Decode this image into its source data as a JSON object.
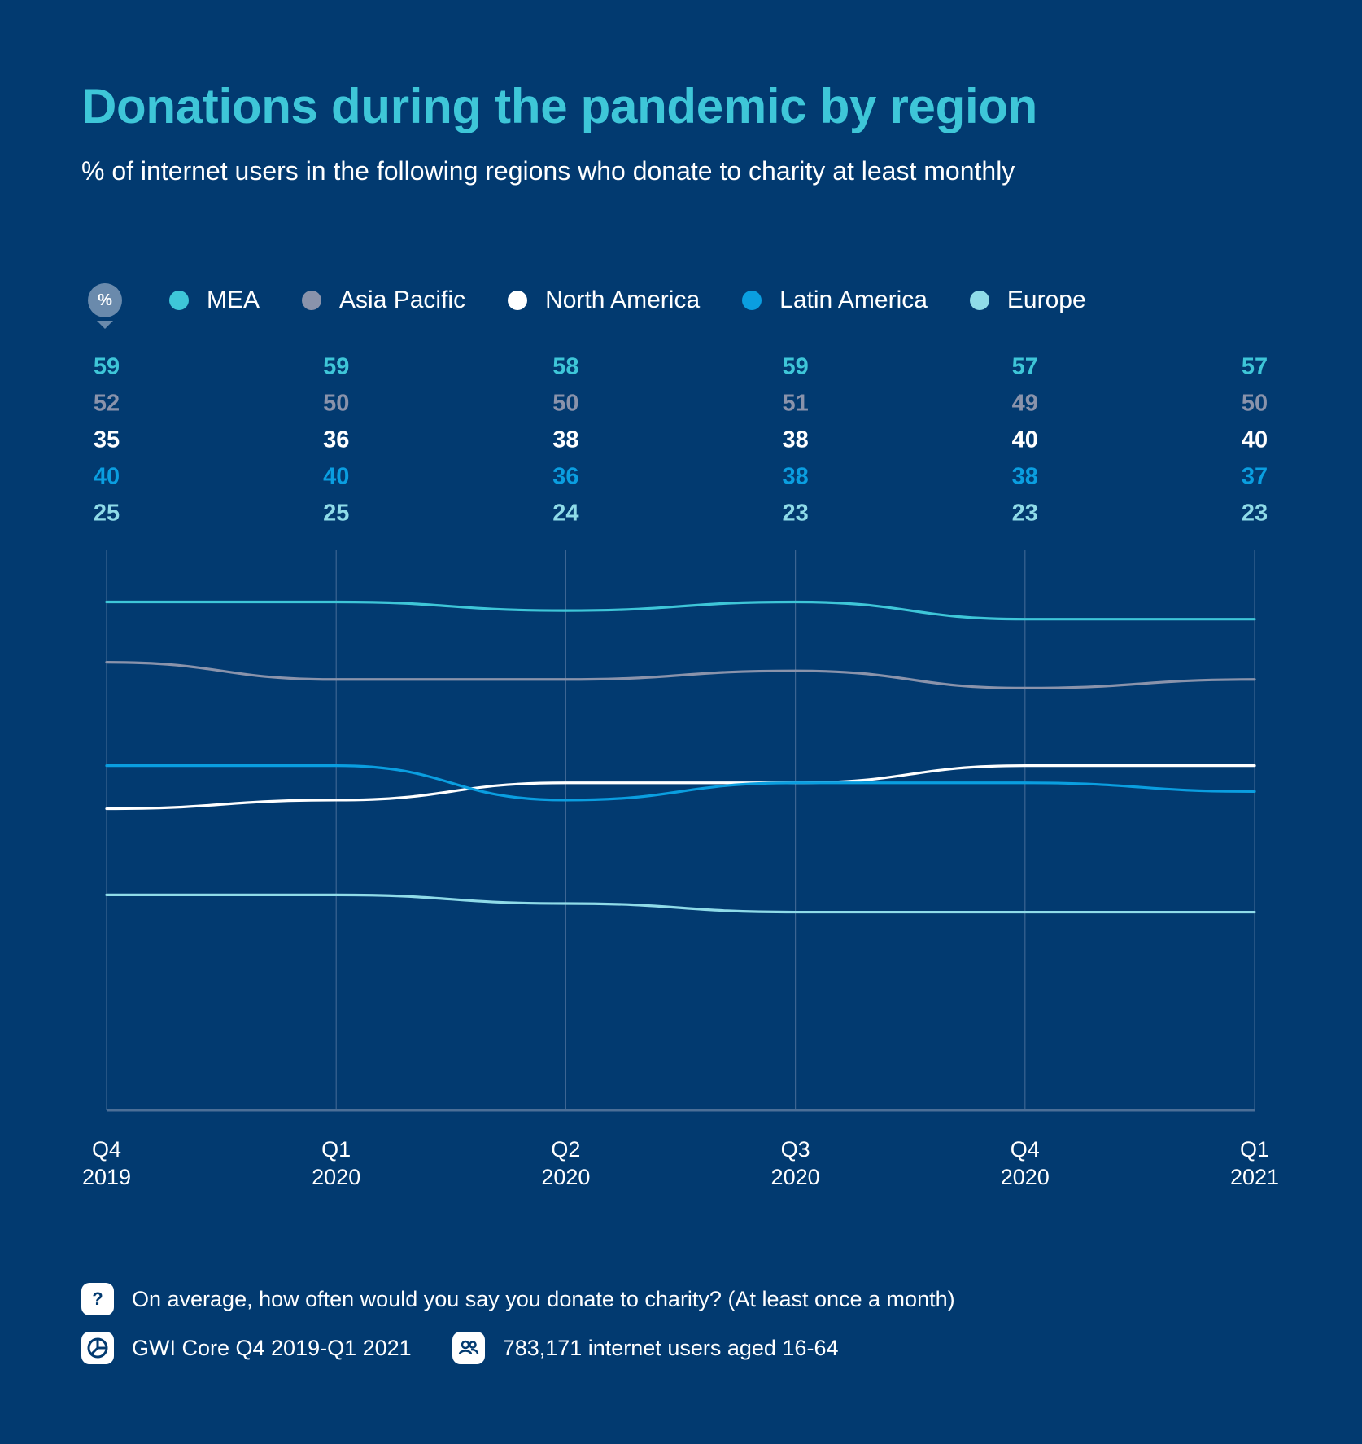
{
  "header": {
    "title": "Donations during the pandemic by region",
    "subtitle": "% of internet users in the following regions who donate to charity at least monthly"
  },
  "legend": {
    "unit_badge": "%",
    "items": [
      {
        "label": "MEA",
        "color": "#3ec6d8"
      },
      {
        "label": "Asia Pacific",
        "color": "#8a93ab"
      },
      {
        "label": "North America",
        "color": "#ffffff"
      },
      {
        "label": "Latin America",
        "color": "#0a9ee0"
      },
      {
        "label": "Europe",
        "color": "#8fdbe8"
      }
    ]
  },
  "chart_data": {
    "type": "line",
    "categories": [
      [
        "Q4",
        "2019"
      ],
      [
        "Q1",
        "2020"
      ],
      [
        "Q2",
        "2020"
      ],
      [
        "Q3",
        "2020"
      ],
      [
        "Q4",
        "2020"
      ],
      [
        "Q1",
        "2021"
      ]
    ],
    "series": [
      {
        "name": "MEA",
        "color": "#3ec6d8",
        "values": [
          59,
          59,
          58,
          59,
          57,
          57
        ]
      },
      {
        "name": "Asia Pacific",
        "color": "#8a93ab",
        "values": [
          52,
          50,
          50,
          51,
          49,
          50
        ]
      },
      {
        "name": "North America",
        "color": "#ffffff",
        "values": [
          35,
          36,
          38,
          38,
          40,
          40
        ]
      },
      {
        "name": "Latin America",
        "color": "#0a9ee0",
        "values": [
          40,
          40,
          36,
          38,
          38,
          37
        ]
      },
      {
        "name": "Europe",
        "color": "#8fdbe8",
        "values": [
          25,
          25,
          24,
          23,
          23,
          23
        ]
      }
    ],
    "ylim": [
      0,
      65
    ],
    "grid": "vertical",
    "legend_position": "top-left"
  },
  "footer": {
    "question_icon": "?",
    "question": "On average, how often would you say you donate to charity? (At least once a month)",
    "source": "GWI Core Q4 2019-Q1 2021",
    "sample": "783,171 internet users aged 16-64"
  }
}
